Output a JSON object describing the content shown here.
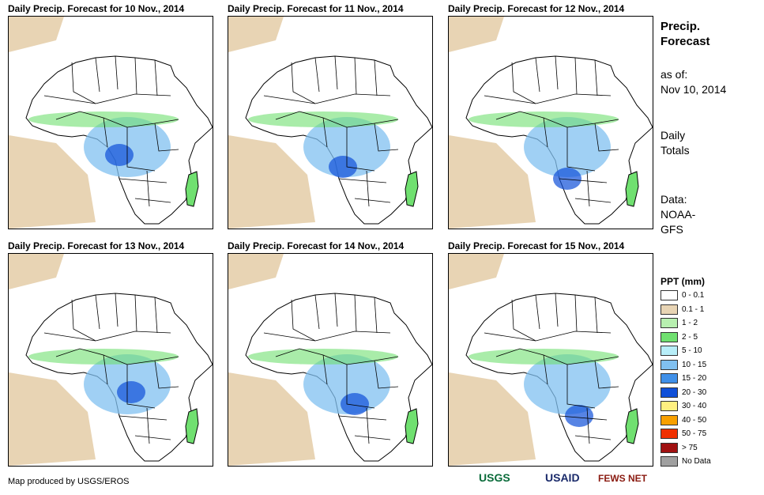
{
  "panels": [
    {
      "title": "Daily Precip. Forecast for 10 Nov., 2014"
    },
    {
      "title": "Daily Precip. Forecast for 11 Nov., 2014"
    },
    {
      "title": "Daily Precip. Forecast for 12 Nov., 2014"
    },
    {
      "title": "Daily Precip. Forecast for 13 Nov., 2014"
    },
    {
      "title": "Daily Precip. Forecast for 14 Nov., 2014"
    },
    {
      "title": "Daily Precip. Forecast for 15 Nov., 2014"
    }
  ],
  "side": {
    "title_line1": "Precip.",
    "title_line2": "Forecast",
    "asof_label": "as of:",
    "asof_date": "Nov 10, 2014",
    "totals_line1": "Daily",
    "totals_line2": "Totals",
    "data_line1": "Data:",
    "data_line2": "NOAA-",
    "data_line3": "GFS"
  },
  "legend": {
    "title": "PPT (mm)",
    "items": [
      {
        "label": "0 - 0.1",
        "color": "#ffffff"
      },
      {
        "label": "0.1 - 1",
        "color": "#e8d4b4"
      },
      {
        "label": "1 - 2",
        "color": "#b8f0b0"
      },
      {
        "label": "2 - 5",
        "color": "#70e070"
      },
      {
        "label": "5 - 10",
        "color": "#b8eef8"
      },
      {
        "label": "10 - 15",
        "color": "#80c0f0"
      },
      {
        "label": "15 - 20",
        "color": "#4090e8"
      },
      {
        "label": "20 - 30",
        "color": "#1050d8"
      },
      {
        "label": "30 - 40",
        "color": "#fff080"
      },
      {
        "label": "40 - 50",
        "color": "#f8a000"
      },
      {
        "label": "50 - 75",
        "color": "#f03000"
      },
      {
        "label": "> 75",
        "color": "#a01010"
      },
      {
        "label": "No Data",
        "color": "#a0a0a0"
      }
    ]
  },
  "footer": "Map produced by USGS/EROS",
  "logos": {
    "usgs": "USGS",
    "usaid": "USAID",
    "fewsnet": "FEWS NET"
  }
}
